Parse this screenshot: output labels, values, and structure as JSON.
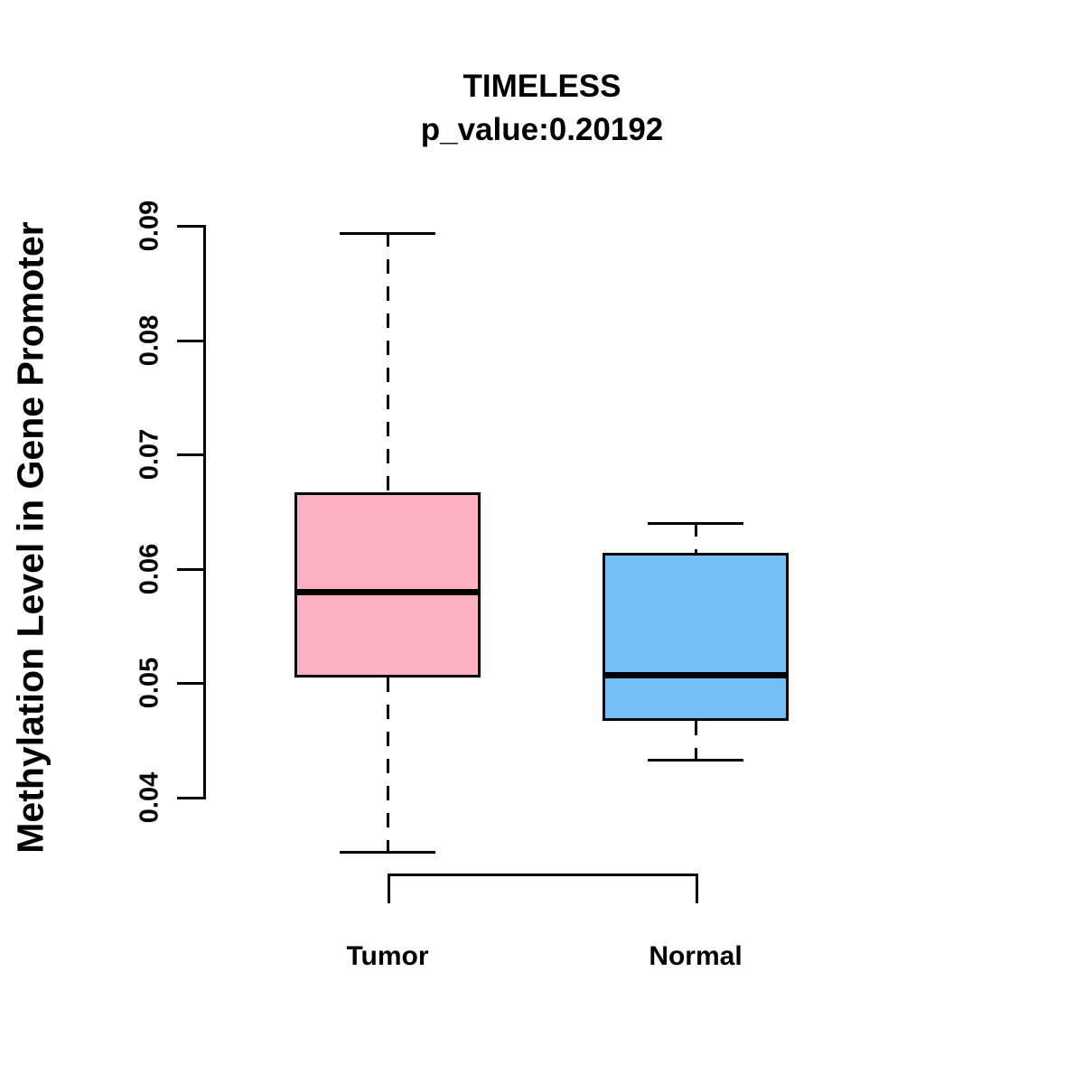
{
  "chart_data": {
    "type": "boxplot",
    "title": "TIMELESS",
    "subtitle": "p_value:0.20192",
    "ylabel": "Methylation Level in Gene Promoter",
    "xlabel": "",
    "categories": [
      "Tumor",
      "Normal"
    ],
    "series": [
      {
        "name": "Tumor",
        "color": "#FFB1C1",
        "whisker_low": 0.0353,
        "q1": 0.0504,
        "median": 0.0579,
        "q3": 0.0666,
        "whisker_high": 0.0894
      },
      {
        "name": "Normal",
        "color": "#74BFF8",
        "whisker_low": 0.0433,
        "q1": 0.0466,
        "median": 0.0507,
        "q3": 0.0613,
        "whisker_high": 0.064
      }
    ],
    "ylim": [
      0.04,
      0.09
    ],
    "yticks": [
      0.04,
      0.05,
      0.06,
      0.07,
      0.08,
      0.09
    ],
    "ytick_labels": [
      "0.04",
      "0.05",
      "0.06",
      "0.07",
      "0.08",
      "0.09"
    ],
    "grid": false,
    "legend": "none",
    "whisker_line_style": "dashed",
    "text_color": "#000000",
    "background_color": "#ffffff"
  }
}
